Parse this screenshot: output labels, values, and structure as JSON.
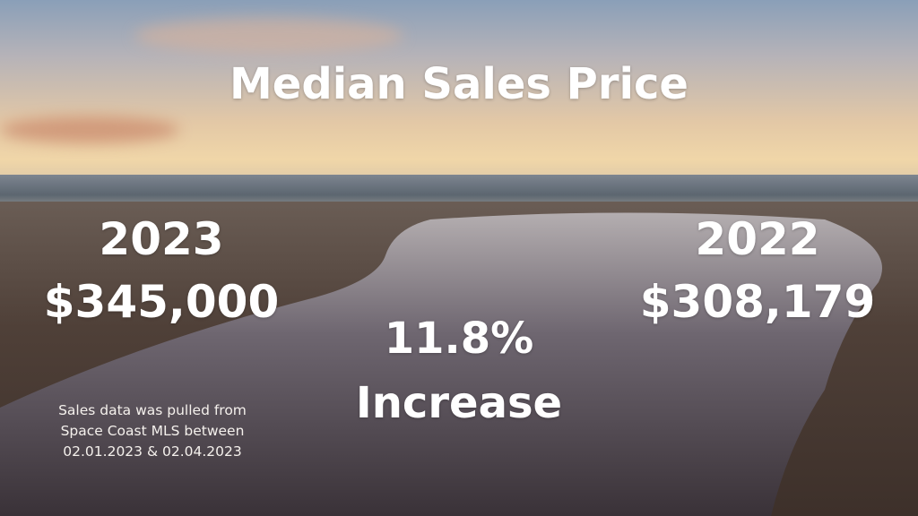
{
  "title": "Median Sales Price",
  "current": {
    "year": "2023",
    "price": "$345,000"
  },
  "previous": {
    "year": "2022",
    "price": "$308,179"
  },
  "change": {
    "percent": "11.8%",
    "label": "Increase"
  },
  "note": [
    "Sales data was pulled from",
    "Space Coast MLS between",
    "02.01.2023 & 02.04.2023"
  ]
}
